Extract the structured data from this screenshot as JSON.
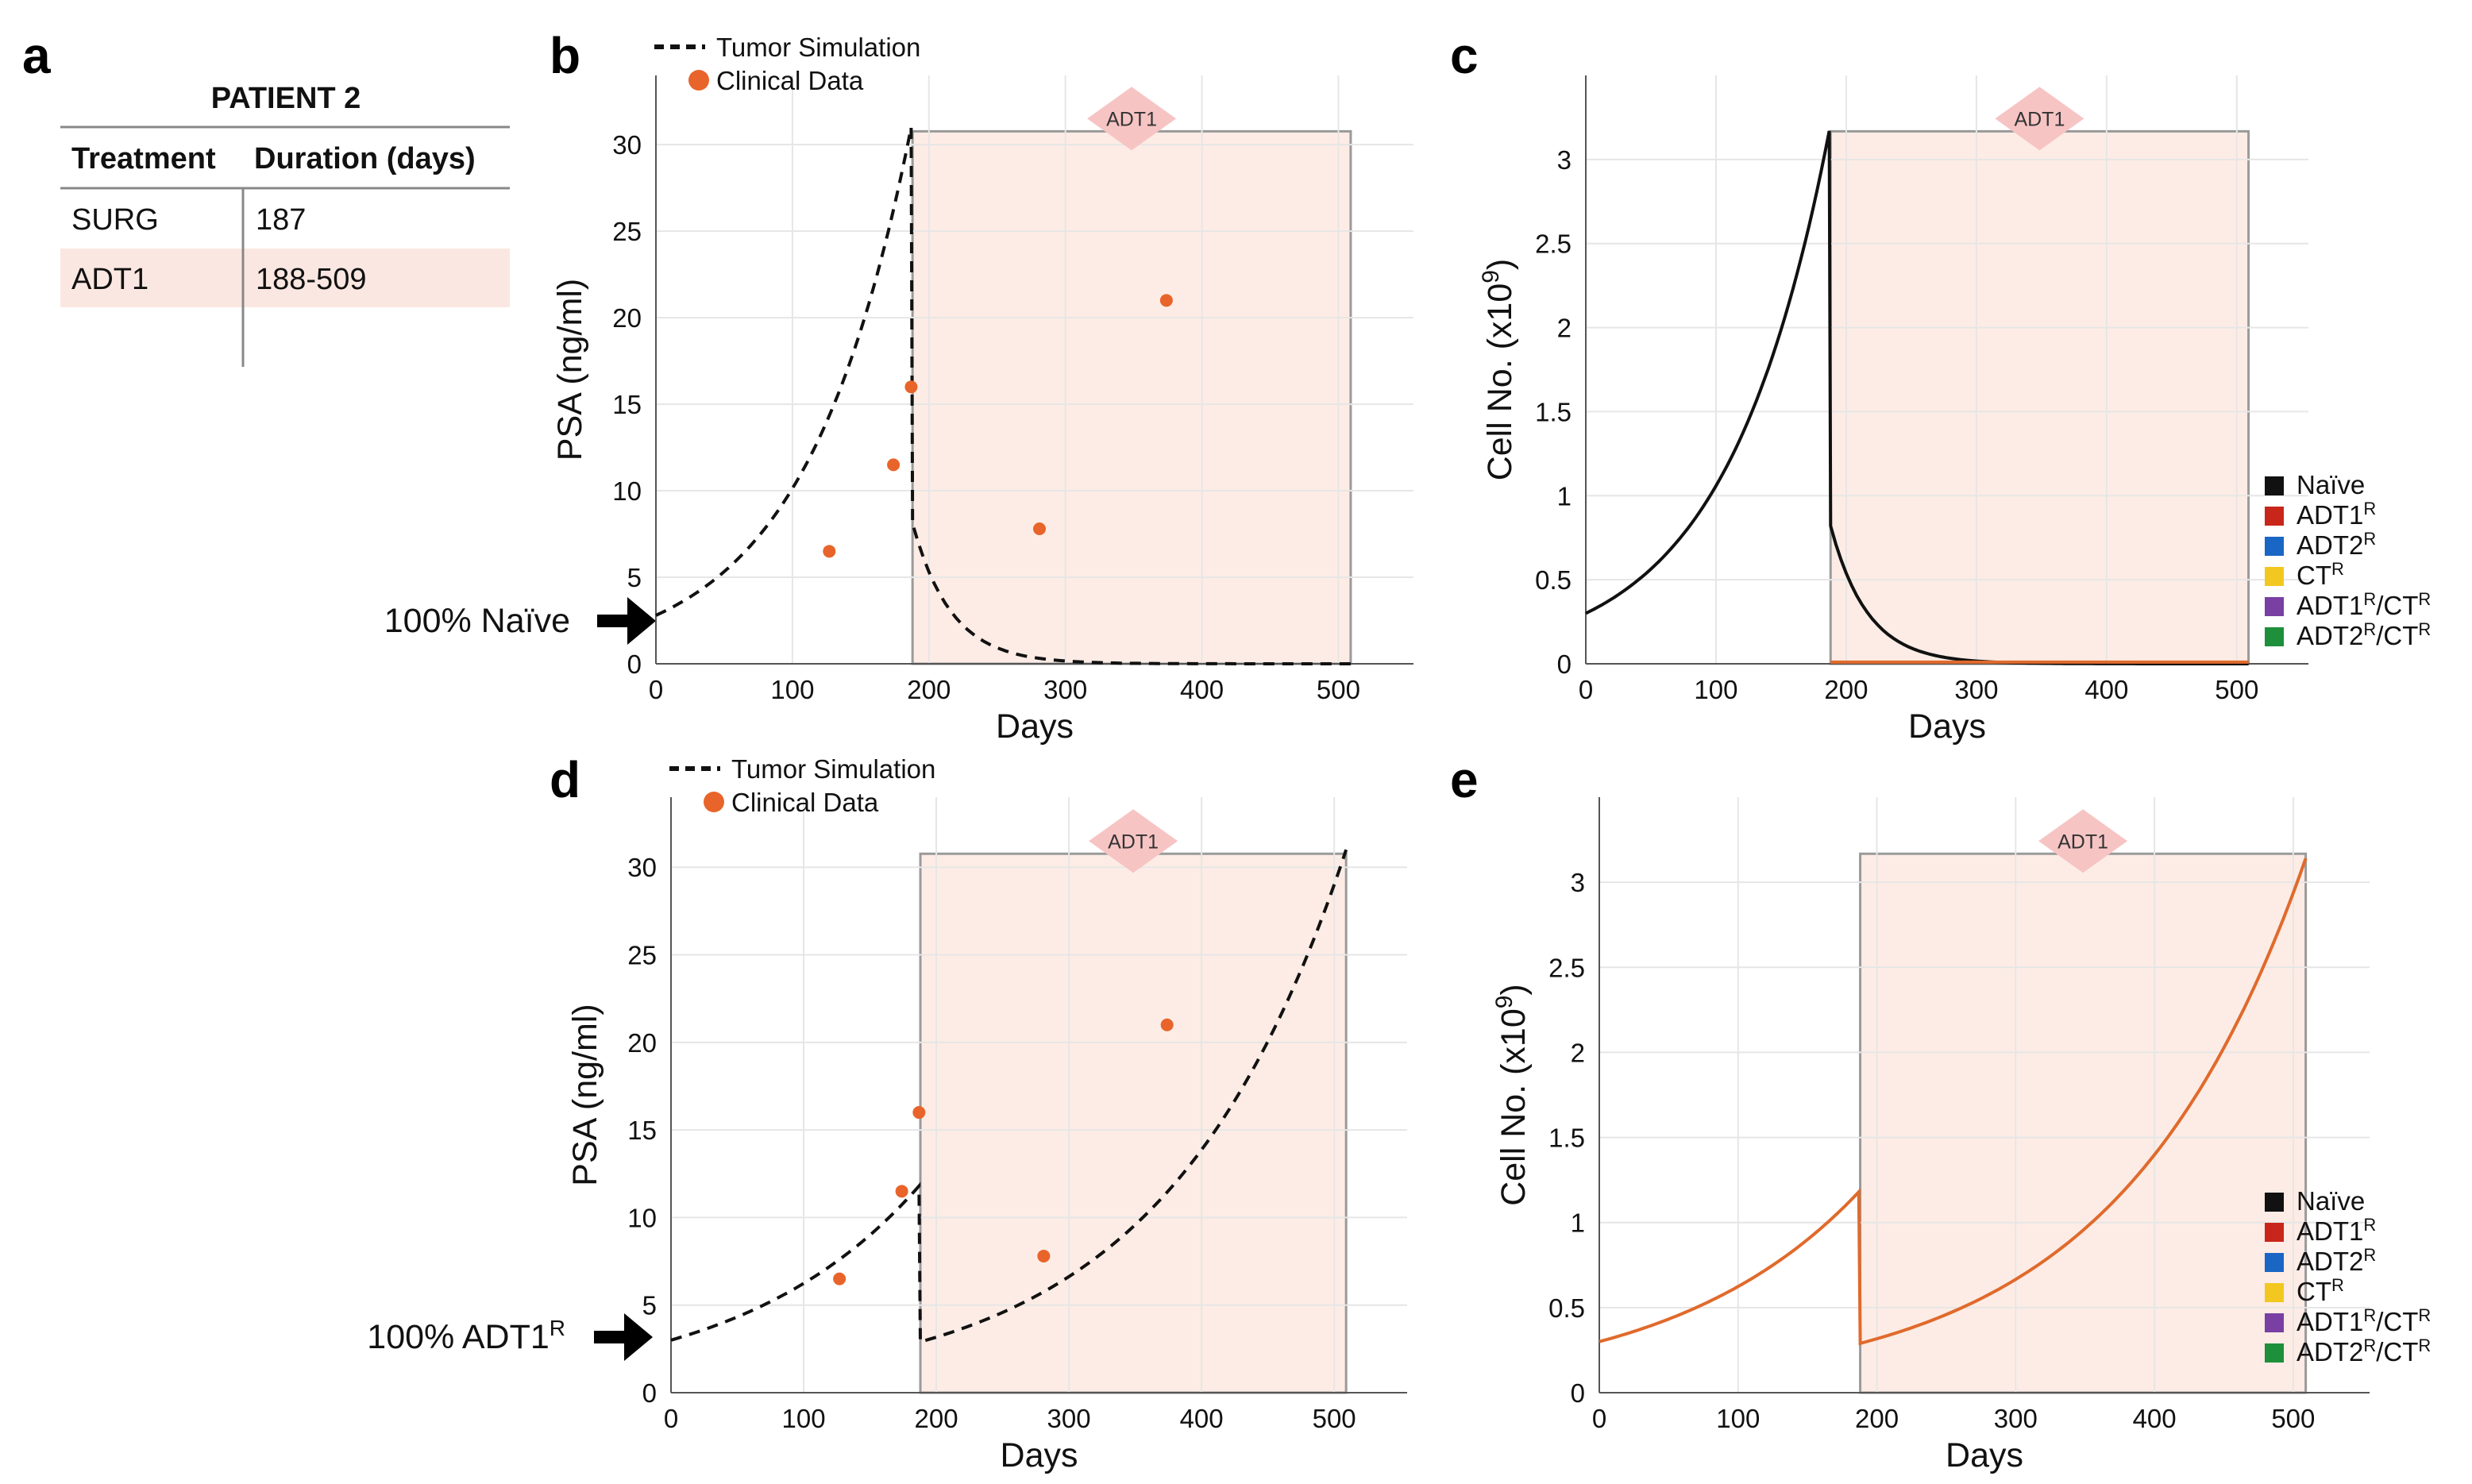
{
  "panel_letters": {
    "a": "a",
    "b": "b",
    "c": "c",
    "d": "d",
    "e": "e"
  },
  "table": {
    "title": "PATIENT 2",
    "headers": [
      "Treatment",
      "Duration (days)"
    ],
    "rows": [
      {
        "treatment": "SURG",
        "duration": "187"
      },
      {
        "treatment": "ADT1",
        "duration": "188-509"
      }
    ],
    "highlight_color": "#fbe7e1"
  },
  "colors": {
    "treatment_fill": "#fdece5",
    "treatment_badge": "#f7c4c4",
    "clinical_point": "#e8642a",
    "simulation_line": "#111111",
    "adt1r_line": "#e06a2c",
    "naive_line": "#111111"
  },
  "arrow_labels": {
    "b": {
      "prefix": "100% Naïve",
      "sup": ""
    },
    "d": {
      "prefix": "100% ADT1",
      "sup": "R"
    }
  },
  "legend_cells": [
    {
      "base": "Naïve",
      "sup1": "",
      "mid": "",
      "sup2": "",
      "color": "#111111"
    },
    {
      "base": "ADT1",
      "sup1": "R",
      "mid": "",
      "sup2": "",
      "color": "#c9261b"
    },
    {
      "base": "ADT2",
      "sup1": "R",
      "mid": "",
      "sup2": "",
      "color": "#1a66c4"
    },
    {
      "base": "CT",
      "sup1": "R",
      "mid": "",
      "sup2": "",
      "color": "#f2c820"
    },
    {
      "base": "ADT1",
      "sup1": "R",
      "mid": "/CT",
      "sup2": "R",
      "color": "#7a3fa3"
    },
    {
      "base": "ADT2",
      "sup1": "R",
      "mid": "/CT",
      "sup2": "R",
      "color": "#1e8f3a"
    }
  ],
  "chart_data": [
    {
      "id": "b",
      "type": "line+scatter",
      "xlabel": "Days",
      "ylabel": "PSA (ng/ml)",
      "xlim": [
        0,
        555
      ],
      "ylim": [
        0,
        34
      ],
      "xticks": [
        0,
        100,
        200,
        300,
        400,
        500
      ],
      "yticks": [
        0,
        5,
        10,
        15,
        20,
        25,
        30
      ],
      "treatment": {
        "label": "ADT1",
        "start": 188,
        "end": 509
      },
      "legend": [
        "Tumor Simulation",
        "Clinical Data"
      ],
      "clinical_data": {
        "x": [
          127,
          174,
          187,
          281,
          374
        ],
        "y": [
          6.5,
          11.5,
          16,
          7.8,
          21
        ]
      },
      "simulation": {
        "phase1": {
          "x0": 0,
          "x1": 187,
          "y0": 2.8,
          "y1": 31
        },
        "phase2": {
          "x0": 188,
          "x1": 509,
          "y0": 8.1,
          "k": 0.035,
          "floor": 0
        }
      }
    },
    {
      "id": "c",
      "type": "line",
      "xlabel": "Days",
      "ylabel": "Cell No. (x10",
      "ylabel_sup": "9",
      "ylabel_close": ")",
      "xlim": [
        0,
        555
      ],
      "ylim": [
        0,
        3.5
      ],
      "xticks": [
        0,
        100,
        200,
        300,
        400,
        500
      ],
      "yticks": [
        0,
        0.5,
        1,
        1.5,
        2,
        2.5,
        3
      ],
      "treatment": {
        "label": "ADT1",
        "start": 188,
        "end": 509
      },
      "series": [
        {
          "name": "Naïve",
          "phase1": {
            "x0": 0,
            "x1": 187,
            "y0": 0.3,
            "y1": 3.17
          },
          "phase2": {
            "x0": 188,
            "x1": 509,
            "y0": 0.82,
            "k": 0.035,
            "floor": 0
          }
        },
        {
          "name": "ADT1R",
          "constant": 0.01,
          "from": 188,
          "to": 509
        }
      ]
    },
    {
      "id": "d",
      "type": "line+scatter",
      "xlabel": "Days",
      "ylabel": "PSA (ng/ml)",
      "xlim": [
        0,
        555
      ],
      "ylim": [
        0,
        34
      ],
      "xticks": [
        0,
        100,
        200,
        300,
        400,
        500
      ],
      "yticks": [
        0,
        5,
        10,
        15,
        20,
        25,
        30
      ],
      "treatment": {
        "label": "ADT1",
        "start": 188,
        "end": 509
      },
      "legend": [
        "Tumor Simulation",
        "Clinical Data"
      ],
      "clinical_data": {
        "x": [
          127,
          174,
          187,
          281,
          374
        ],
        "y": [
          6.5,
          11.5,
          16,
          7.8,
          21
        ]
      },
      "simulation": {
        "phase1": {
          "x0": 0,
          "x1": 187,
          "y0": 3.0,
          "y1": 11.8
        },
        "phase2": {
          "x0": 188,
          "x1": 509,
          "y0": 2.9,
          "y1": 31
        }
      }
    },
    {
      "id": "e",
      "type": "line",
      "xlabel": "Days",
      "ylabel": "Cell No. (x10",
      "ylabel_sup": "9",
      "ylabel_close": ")",
      "xlim": [
        0,
        555
      ],
      "ylim": [
        0,
        3.5
      ],
      "xticks": [
        0,
        100,
        200,
        300,
        400,
        500
      ],
      "yticks": [
        0,
        0.5,
        1,
        1.5,
        2,
        2.5,
        3
      ],
      "treatment": {
        "label": "ADT1",
        "start": 188,
        "end": 509
      },
      "series": [
        {
          "name": "ADT1R",
          "phase1": {
            "x0": 0,
            "x1": 187,
            "y0": 0.3,
            "y1": 1.18
          },
          "phase2": {
            "x0": 188,
            "x1": 509,
            "y0": 0.29,
            "y1": 3.14
          }
        }
      ]
    }
  ]
}
